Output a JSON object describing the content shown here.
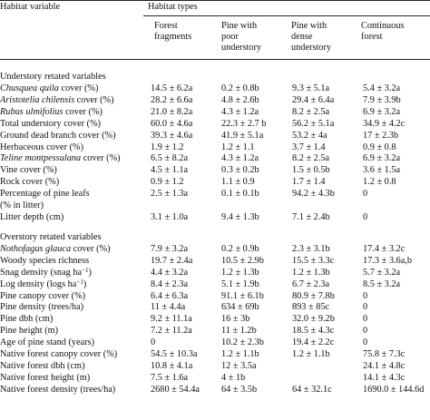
{
  "header": {
    "habitat_variable": "Habitat variable",
    "habitat_types": "Habitat types",
    "col1": [
      "Forest",
      "fragments"
    ],
    "col2": [
      "Pine with",
      "poor",
      "understory"
    ],
    "col3": [
      "Pine with",
      "dense",
      "understory"
    ],
    "col4": [
      "Continuous",
      "forest"
    ]
  },
  "sections": [
    {
      "title": "Understory retated variables",
      "rows": [
        {
          "label": "Chusquea quila",
          "label_rest": " cover (%)",
          "italic": true,
          "values": [
            "14.5 ± 6.2a",
            "0.2 ± 0.8b",
            "9.3 ± 5.1a",
            "5.4 ± 3.2a"
          ]
        },
        {
          "label": "Aristotelia chilensis",
          "label_rest": " cover (%)",
          "italic": true,
          "values": [
            "28.2 ± 6.6a",
            "4.8 ± 2.6b",
            "29.4 ± 6.4a",
            "7.9 ± 3.9b"
          ]
        },
        {
          "label": "Rubus ulmifolius",
          "label_rest": " cover (%)",
          "italic": true,
          "values": [
            "21.0 ± 8.2a",
            "4.3 ± 1.2a",
            "8.2 ± 2.5a",
            "6.9 ± 3.2a"
          ]
        },
        {
          "label": "Total understory cover (%)",
          "label_rest": "",
          "italic": false,
          "values": [
            "60.0 ± 4.6a",
            "22.3 ± 2.7 b",
            "56.2 ± 5.1a",
            "34.9 ± 4.2c"
          ]
        },
        {
          "label": "Ground dead branch cover (%)",
          "label_rest": "",
          "italic": false,
          "values": [
            "39.3 ± 4.6a",
            "41.9 ± 5.1a",
            "53.2 ± 4a",
            "17 ± 2.3b"
          ]
        },
        {
          "label": "Herbaceous cover (%)",
          "label_rest": "",
          "italic": false,
          "values": [
            "1.9 ± 1.2",
            "1.2 ± 1.1",
            "3.7 ± 1.4",
            "0.9 ± 0.8"
          ]
        },
        {
          "label": "Teline montpessulana",
          "label_rest": " cover (%)",
          "italic": true,
          "values": [
            "6.5 ± 8.2a",
            "4.3 ± 1.2a",
            "8.2 ± 2.5a",
            "6.9 ± 3.2a"
          ]
        },
        {
          "label": "Vine cover (%)",
          "label_rest": "",
          "italic": false,
          "values": [
            "4.5 ± 1.1a",
            "0.3 ± 0.2b",
            "1.5 ± 0.5b",
            "3.6 ± 1.5a"
          ]
        },
        {
          "label": "Rock cover (%)",
          "label_rest": "",
          "italic": false,
          "values": [
            "0.9 ± 1.2",
            "1.1 ± 0.9",
            "1.7 ± 1.4",
            "1.2 ± 0.8"
          ]
        },
        {
          "label": "Percentage of pine leafs",
          "label_rest": "",
          "italic": false,
          "values": [
            "2.5 ± 1.3a",
            "0.1 ± 0.1b",
            "94.2 ± 4.3b",
            "0"
          ]
        },
        {
          "label": "(% in litter)",
          "label_rest": "",
          "italic": false,
          "values": [
            "",
            "",
            "",
            ""
          ]
        },
        {
          "label": "Litter depth (cm)",
          "label_rest": "",
          "italic": false,
          "values": [
            "3.1 ± 1.0a",
            "9.4 ± 1.3b",
            "7.1 ± 2.4b",
            "0"
          ]
        }
      ]
    },
    {
      "title": "Overstory retated variables",
      "rows": [
        {
          "label": "Nothofagus glauca",
          "label_rest": " cover (%)",
          "italic": true,
          "values": [
            "7.9 ± 3.2a",
            "0.2 ± 0.9b",
            "2.3 ± 3.1b",
            "17.4 ± 3.2c"
          ]
        },
        {
          "label": "Woody species richness",
          "label_rest": "",
          "italic": false,
          "values": [
            "19.7 ± 2.4a",
            "10.5 ± 2.9b",
            "15.5 ± 3.3c",
            "17.3 ± 3.6a,b"
          ]
        },
        {
          "label": "Snag density (snag ha",
          "sup": "−1",
          "label_rest": ")",
          "italic": false,
          "values": [
            "4.4 ± 3.2a",
            "1.2 ± 1.3b",
            "1.2 ± 1.3b",
            "5.7 ± 3.2a"
          ]
        },
        {
          "label": "Log density (logs ha",
          "sup": "−1",
          "label_rest": ")",
          "italic": false,
          "values": [
            "8.4 ± 2.3a",
            "5.1 ± 1.9b",
            "6.7 ± 2.3a",
            "8.5 ± 3.2a"
          ]
        },
        {
          "label": "Pine canopy cover (%)",
          "label_rest": "",
          "italic": false,
          "values": [
            "6.4 ± 6.3a",
            "91.1 ± 6.1b",
            "80.9 ± 7.8b",
            "0"
          ]
        },
        {
          "label": "Pine density (trees/ha)",
          "label_rest": "",
          "italic": false,
          "values": [
            "11 ± 4.4a",
            "634 ± 69b",
            "893 ± 85c",
            "0"
          ]
        },
        {
          "label": "Pine dbh (cm)",
          "label_rest": "",
          "italic": false,
          "values": [
            "9.2 ± 11.1a",
            "16 ± 3b",
            "32.0 ± 9.2b",
            "0"
          ]
        },
        {
          "label": "Pine height (m)",
          "label_rest": "",
          "italic": false,
          "values": [
            "7.2 ± 11.2a",
            "11 ± 1.2b",
            "18.5 ± 4.3c",
            "0"
          ]
        },
        {
          "label": "Age of pine stand (years)",
          "label_rest": "",
          "italic": false,
          "values": [
            "0",
            "10.2 ± 2.3b",
            "19.4 ± 2.2c",
            "0"
          ]
        },
        {
          "label": "Native forest canopy cover (%)",
          "label_rest": "",
          "italic": false,
          "values": [
            "54.5 ± 10.3a",
            "1.2 ± 1.1b",
            "1.2 ± 1.1b",
            "75.8 ± 7.3c"
          ]
        },
        {
          "label": "Native forest dbh (cm)",
          "label_rest": "",
          "italic": false,
          "values": [
            "10.8 ± 4.1a",
            "12 ± 3.5a",
            "",
            "24.1 ± 4.8c"
          ]
        },
        {
          "label": "Native forest height (m)",
          "label_rest": "",
          "italic": false,
          "values": [
            "7.5 ± 1.6a",
            "4 ± 1b",
            "",
            "14.1 ± 4.3c"
          ]
        },
        {
          "label": "Native forest density (trees/ha)",
          "label_rest": "",
          "italic": false,
          "values": [
            "2680 ± 54.4a",
            "64 ± 3.5b",
            "64 ± 32.1c",
            "1690.0 ± 144.6d"
          ]
        }
      ]
    }
  ]
}
